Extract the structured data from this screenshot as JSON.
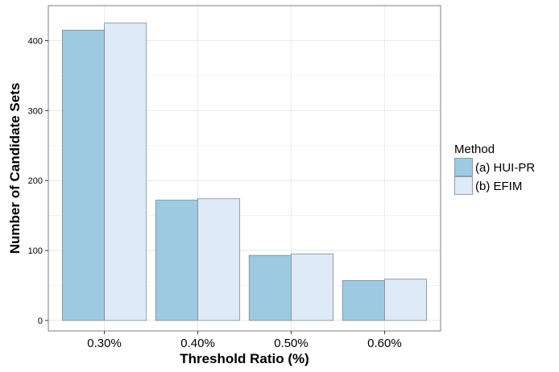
{
  "chart_data": {
    "type": "bar",
    "title": "",
    "xlabel": "Threshold Ratio (%)",
    "ylabel": "Number of Candidate Sets",
    "categories": [
      "0.30%",
      "0.40%",
      "0.50%",
      "0.60%"
    ],
    "series": [
      {
        "name": "(a) HUI-PR",
        "values": [
          415,
          172,
          93,
          57
        ],
        "color": "#9ecae1"
      },
      {
        "name": "(b) EFIM",
        "values": [
          425,
          174,
          95,
          59
        ],
        "color": "#deebf7"
      }
    ],
    "ylim": [
      -15,
      450
    ],
    "yticks": [
      0,
      100,
      200,
      300,
      400
    ],
    "grid": true,
    "legend": {
      "title": "Method",
      "placement": "right"
    },
    "colors": {
      "panel_border": "#7f7f7f",
      "grid": "#ebebeb",
      "bar_stroke": "#7a8a95"
    }
  }
}
